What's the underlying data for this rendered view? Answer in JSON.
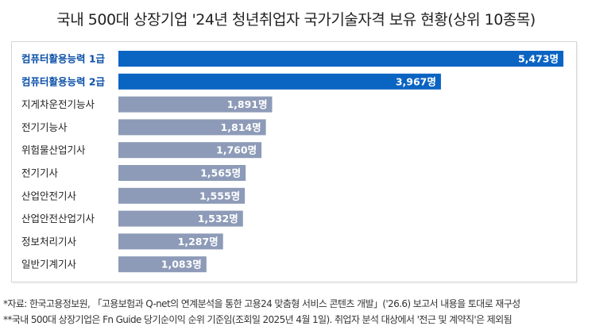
{
  "title": "국내 500대 상장기업 '24년 청년취업자 국가기술자격 보유 현황(상위 10종목)",
  "chart_data": {
    "type": "bar",
    "orientation": "horizontal",
    "categories": [
      "컴퓨터활용능력 1급",
      "컴퓨터활용능력 2급",
      "지게차운전기능사",
      "전기기능사",
      "위험물산업기사",
      "전기기사",
      "산업안전기사",
      "산업안전산업기사",
      "정보처리기사",
      "일반기계기사"
    ],
    "values": [
      5473,
      3967,
      1891,
      1814,
      1760,
      1565,
      1555,
      1532,
      1287,
      1083
    ],
    "value_labels": [
      "5,473명",
      "3,967명",
      "1,891명",
      "1,814명",
      "1,760명",
      "1,565명",
      "1,555명",
      "1,532명",
      "1,287명",
      "1,083명"
    ],
    "highlight_count": 2,
    "colors": {
      "highlight": "#0a64c2",
      "normal": "#8d9bb8",
      "highlight_label": "#0a4fa8",
      "normal_label": "#222222"
    },
    "xlim": [
      0,
      5473
    ],
    "grid": false,
    "legend": "none"
  },
  "notes": [
    "*자료: 한국고용정보원, 「고용보험과 Q-net의 연계분석을 통한 고용24 맞춤형 서비스 콘텐츠 개발」('26.6) 보고서 내용을 토대로 재구성",
    "**국내 500대 상장기업은 Fn Guide 당기순이익 순위 기준임(조회일 2025년 4월 1일). 취업자 분석 대상에서 '전근 및 계약직'은 제외됨"
  ]
}
